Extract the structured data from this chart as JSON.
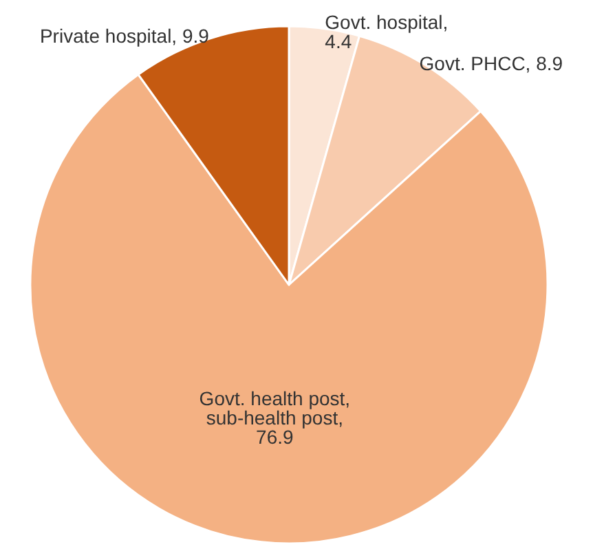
{
  "chart_data": {
    "type": "pie",
    "categories": [
      "Govt. hospital",
      "Govt. PHCC",
      "Govt. health post, sub-health post",
      "Private hospital"
    ],
    "values": [
      4.4,
      8.9,
      76.9,
      9.9
    ],
    "colors": [
      "#fbe5d6",
      "#f8cbad",
      "#f4b183",
      "#c55a11"
    ],
    "value_labels": [
      ", 4.4",
      ", 8.9",
      ", 76.9",
      ", 9.9"
    ],
    "legend": false
  }
}
